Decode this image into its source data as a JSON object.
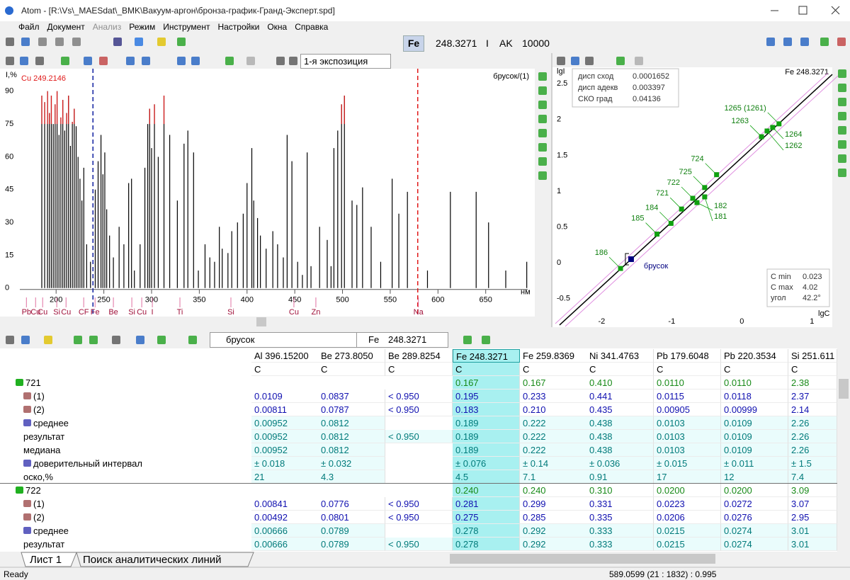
{
  "title_bar": {
    "title": "Atom - [R:\\Vs\\_MAESdat\\_BMK\\Вакуум-аргон\\бронза-график-Гранд-Эксперт.spd]"
  },
  "menu": [
    "Файл",
    "Документ",
    "Анализ",
    "Режим",
    "Инструмент",
    "Настройки",
    "Окна",
    "Справка"
  ],
  "toolbar": {
    "element": "Fe",
    "wavelength": "248.3271",
    "mode": "I",
    "ak": "AK",
    "ak_value": "10000"
  },
  "spectrum_toolbar": {
    "exposure": "1-я экспозиция"
  },
  "chart_data": [
    {
      "type": "stem",
      "title": "брусок/(1)",
      "ylabel": "I,%",
      "xlabel": "нм",
      "annotation": "Cu 249.2146",
      "color": "#000000",
      "saturation": 75,
      "saturation_color": "#e01818",
      "x": [
        185,
        188,
        191,
        193,
        195,
        197,
        199,
        201,
        203,
        205,
        207,
        209,
        211,
        213,
        215,
        217,
        219,
        221,
        223,
        225,
        227,
        229,
        232,
        236,
        241,
        244,
        247,
        249,
        251,
        253,
        256,
        260,
        266,
        271,
        276,
        279,
        282,
        288,
        293,
        296,
        298,
        300,
        303,
        307,
        313,
        319,
        327,
        334,
        338,
        344,
        349,
        356,
        361,
        366,
        371,
        374,
        380,
        384,
        390,
        396,
        400,
        405,
        407,
        411,
        414,
        420,
        427,
        432,
        438,
        442,
        447,
        453,
        458,
        463,
        467,
        476,
        484,
        488,
        491,
        495,
        499,
        502,
        510,
        515,
        521,
        530,
        540,
        552,
        559,
        568,
        589,
        613,
        640,
        653,
        671,
        693
      ],
      "values": [
        88,
        85,
        90,
        80,
        88,
        75,
        84,
        90,
        70,
        78,
        86,
        72,
        80,
        88,
        65,
        76,
        82,
        74,
        60,
        50,
        40,
        55,
        20,
        12,
        45,
        58,
        70,
        52,
        62,
        36,
        24,
        14,
        28,
        20,
        48,
        50,
        8,
        20,
        55,
        75,
        82,
        64,
        84,
        60,
        88,
        70,
        40,
        66,
        72,
        62,
        8,
        20,
        14,
        12,
        28,
        18,
        16,
        26,
        30,
        34,
        48,
        64,
        40,
        32,
        24,
        18,
        26,
        20,
        14,
        70,
        58,
        12,
        6,
        62,
        10,
        28,
        22,
        10,
        64,
        72,
        84,
        88,
        40,
        38,
        46,
        28,
        12,
        50,
        34,
        44,
        8,
        44,
        44,
        30,
        8,
        12
      ],
      "xlim": [
        162,
        694
      ],
      "ylim": [
        -3,
        99
      ],
      "xticks": [
        200,
        250,
        300,
        350,
        400,
        450,
        500,
        550,
        600,
        650
      ],
      "yticks": [
        0,
        15,
        30,
        45,
        60,
        75,
        90
      ],
      "markers": [
        {
          "x": 238.6,
          "color": "#1020a0"
        },
        {
          "x": 578.8,
          "color": "#e01818"
        }
      ],
      "element_lines": {
        "labels": [
          "Pb",
          "Cu",
          "Cu",
          "Si",
          "Cu",
          "CF",
          "Fe",
          "Be",
          "Si",
          "Cu",
          "I",
          "Ti",
          "Si",
          "Cu",
          "Zn",
          "Na"
        ],
        "x": [
          168.9,
          178.5,
          185.9,
          200.7,
          210.4,
          228.9,
          240.8,
          260.0,
          279.3,
          289.7,
          300.8,
          329.7,
          383.1,
          449.1,
          472.1,
          579.5
        ],
        "color": "#a0103a"
      }
    },
    {
      "type": "scatter",
      "title": "Fe 248.3271",
      "xlabel": "lgC",
      "ylabel": "lgI",
      "xlim": [
        -2.65,
        1.29
      ],
      "ylim": [
        -0.9,
        2.73
      ],
      "xticks": [
        -2,
        -1,
        0,
        1
      ],
      "yticks": [
        -0.5,
        0,
        0.5,
        1,
        1.5,
        2,
        2.5
      ],
      "labels": [
        "186",
        "185",
        "184",
        "721",
        "722",
        "725",
        "724",
        "182",
        "181",
        "1263",
        "1262",
        "1264",
        "1265 (1261)"
      ],
      "x": [
        -1.73,
        -1.21,
        -1.01,
        -0.86,
        -0.7,
        -0.53,
        -0.36,
        -0.64,
        -0.53,
        0.28,
        0.36,
        0.44,
        0.53
      ],
      "values": [
        -0.08,
        0.4,
        0.55,
        0.75,
        0.9,
        1.05,
        1.23,
        0.84,
        0.92,
        1.76,
        1.84,
        1.89,
        1.94
      ],
      "color": "#10a010",
      "sample": {
        "label": "брусок",
        "x": -1.58,
        "value": 0.05,
        "color": "#000080"
      },
      "regression": {
        "x": [
          -2.6,
          1.29
        ],
        "values": [
          -0.87,
          2.63
        ],
        "color": "#000000"
      },
      "stats": [
        {
          "label": "дисп сход",
          "value": "0.0001652"
        },
        {
          "label": "дисп адекв",
          "value": "0.003397"
        },
        {
          "label": "СКО град",
          "value": "0.04136"
        }
      ],
      "range_box": [
        {
          "label": "C min",
          "value": "0.023"
        },
        {
          "label": "C max",
          "value": "4.02"
        },
        {
          "label": "угол",
          "value": "42.2°"
        }
      ]
    }
  ],
  "table_toolbar": {
    "sample": "брусок",
    "element": "Fe",
    "wavelength": "248.3271"
  },
  "table": {
    "columns": [
      {
        "name": "Al 396.15200",
        "unit": "C"
      },
      {
        "name": "Be 273.8050",
        "unit": "C"
      },
      {
        "name": "Be 289.8254",
        "unit": "C"
      },
      {
        "name": "Fe 248.3271",
        "unit": "C"
      },
      {
        "name": "Fe 259.8369",
        "unit": "C"
      },
      {
        "name": "Ni 341.4763",
        "unit": "C"
      },
      {
        "name": "Pb 179.6048",
        "unit": "C"
      },
      {
        "name": "Pb 220.3534",
        "unit": "C"
      },
      {
        "name": "Si 251.611",
        "unit": "C"
      }
    ],
    "rows": [
      [
        "721",
        null,
        null,
        null,
        "0.167",
        "0.167",
        "0.410",
        "0.0110",
        "0.0110",
        "2.38"
      ],
      [
        "(1)",
        "0.0109",
        "0.0837",
        "< 0.950",
        "0.195",
        "0.233",
        "0.441",
        "0.0115",
        "0.0118",
        "2.37"
      ],
      [
        "(2)",
        "0.00811",
        "0.0787",
        "< 0.950",
        "0.183",
        "0.210",
        "0.435",
        "0.00905",
        "0.00999",
        "2.14"
      ],
      [
        "среднее",
        "0.00952",
        "0.0812",
        null,
        "0.189",
        "0.222",
        "0.438",
        "0.0103",
        "0.0109",
        "2.26"
      ],
      [
        "результат",
        "0.00952",
        "0.0812",
        "< 0.950",
        "0.189",
        "0.222",
        "0.438",
        "0.0103",
        "0.0109",
        "2.26"
      ],
      [
        "медиана",
        "0.00952",
        "0.0812",
        null,
        "0.189",
        "0.222",
        "0.438",
        "0.0103",
        "0.0109",
        "2.26"
      ],
      [
        "доверительный интервал",
        "± 0.018",
        "± 0.032",
        null,
        "± 0.076",
        "± 0.14",
        "± 0.036",
        "± 0.015",
        "± 0.011",
        "± 1.5"
      ],
      [
        "оско,%",
        "21",
        "4.3",
        null,
        "4.5",
        "7.1",
        "0.91",
        "17",
        "12",
        "7.4"
      ],
      [
        "722",
        null,
        null,
        null,
        "0.240",
        "0.240",
        "0.310",
        "0.0200",
        "0.0200",
        "3.09"
      ],
      [
        "(1)",
        "0.00841",
        "0.0776",
        "< 0.950",
        "0.281",
        "0.299",
        "0.331",
        "0.0223",
        "0.0272",
        "3.07"
      ],
      [
        "(2)",
        "0.00492",
        "0.0801",
        "< 0.950",
        "0.275",
        "0.285",
        "0.335",
        "0.0206",
        "0.0276",
        "2.95"
      ],
      [
        "среднее",
        "0.00666",
        "0.0789",
        null,
        "0.278",
        "0.292",
        "0.333",
        "0.0215",
        "0.0274",
        "3.01"
      ],
      [
        "результат",
        "0.00666",
        "0.0789",
        "< 0.950",
        "0.278",
        "0.292",
        "0.333",
        "0.0215",
        "0.0274",
        "3.01"
      ]
    ]
  },
  "tabs": [
    "Лист 1",
    "Поиск аналитических линий"
  ],
  "status_bar": {
    "state": "Ready",
    "cursor": "589.0599 (21 : 1832) : 0.995"
  }
}
